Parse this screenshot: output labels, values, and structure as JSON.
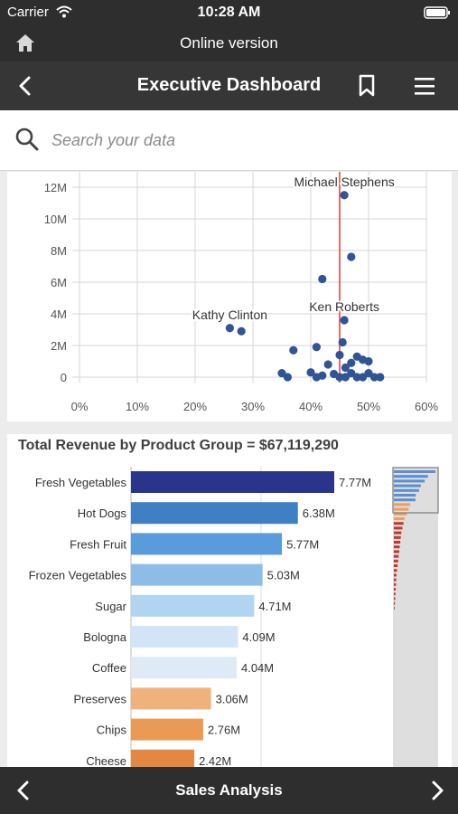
{
  "status": {
    "carrier": "Carrier",
    "time": "10:28 AM"
  },
  "online": {
    "title": "Online version"
  },
  "nav": {
    "title": "Executive Dashboard"
  },
  "search": {
    "placeholder": "Search your data"
  },
  "footer": {
    "title": "Sales Analysis"
  },
  "colors": {
    "reference_line": "#e53935",
    "point": "#2f5597",
    "grid": "#d6d6d6"
  },
  "icons": [
    "home-icon",
    "back-chevron-icon",
    "bookmark-icon",
    "hamburger-menu-icon",
    "search-icon",
    "wifi-icon",
    "battery-icon",
    "prev-chevron-icon",
    "next-chevron-icon"
  ],
  "chart_data": [
    {
      "type": "scatter",
      "x_ticks": [
        "0%",
        "10%",
        "20%",
        "30%",
        "40%",
        "50%",
        "60%"
      ],
      "y_ticks": [
        "0",
        "2M",
        "4M",
        "6M",
        "8M",
        "10M",
        "12M"
      ],
      "xlim": [
        0,
        0.6
      ],
      "ylim": [
        0,
        12000000
      ],
      "reference_line_x": 0.45,
      "grid": true,
      "points": [
        {
          "x": 0.458,
          "y": 11500000
        },
        {
          "x": 0.47,
          "y": 7600000
        },
        {
          "x": 0.42,
          "y": 6200000
        },
        {
          "x": 0.458,
          "y": 3600000
        },
        {
          "x": 0.26,
          "y": 3100000
        },
        {
          "x": 0.28,
          "y": 2900000
        },
        {
          "x": 0.455,
          "y": 2200000
        },
        {
          "x": 0.41,
          "y": 1900000
        },
        {
          "x": 0.37,
          "y": 1700000
        },
        {
          "x": 0.45,
          "y": 1400000
        },
        {
          "x": 0.48,
          "y": 1300000
        },
        {
          "x": 0.49,
          "y": 1100000
        },
        {
          "x": 0.47,
          "y": 900000
        },
        {
          "x": 0.5,
          "y": 1000000
        },
        {
          "x": 0.43,
          "y": 800000
        },
        {
          "x": 0.46,
          "y": 600000
        },
        {
          "x": 0.4,
          "y": 300000
        },
        {
          "x": 0.35,
          "y": 250000
        },
        {
          "x": 0.42,
          "y": 100000
        },
        {
          "x": 0.44,
          "y": 200000
        },
        {
          "x": 0.47,
          "y": 250000
        },
        {
          "x": 0.5,
          "y": 250000
        },
        {
          "x": 0.36,
          "y": 0
        },
        {
          "x": 0.41,
          "y": 0
        },
        {
          "x": 0.45,
          "y": 0
        },
        {
          "x": 0.46,
          "y": 0
        },
        {
          "x": 0.48,
          "y": 0
        },
        {
          "x": 0.49,
          "y": 0
        },
        {
          "x": 0.51,
          "y": 0
        },
        {
          "x": 0.52,
          "y": 0
        }
      ],
      "labels": [
        {
          "text": "Michael Stephens",
          "x": 0.458,
          "y": 11500000
        },
        {
          "text": "Ken Roberts",
          "x": 0.458,
          "y": 3600000
        },
        {
          "text": "Kathy Clinton",
          "x": 0.26,
          "y": 3100000
        }
      ]
    },
    {
      "type": "bar",
      "title": "Total Revenue by Product Group = $67,119,290",
      "categories": [
        "Fresh Vegetables",
        "Hot Dogs",
        "Fresh Fruit",
        "Frozen Vegetables",
        "Sugar",
        "Bologna",
        "Coffee",
        "Preserves",
        "Chips",
        "Cheese"
      ],
      "values": [
        7.77,
        6.38,
        5.77,
        5.03,
        4.71,
        4.09,
        4.04,
        3.06,
        2.76,
        2.42
      ],
      "value_labels": [
        "7.77M",
        "6.38M",
        "5.77M",
        "5.03M",
        "4.71M",
        "4.09M",
        "4.04M",
        "3.06M",
        "2.76M",
        "2.42M"
      ],
      "unit": "M",
      "colors": [
        "#28358a",
        "#3f7fc4",
        "#5a9bdc",
        "#8dbde6",
        "#b1d5f1",
        "#d2e5f7",
        "#dfeaf7",
        "#f0b27b",
        "#eb9a55",
        "#e48740"
      ]
    }
  ]
}
